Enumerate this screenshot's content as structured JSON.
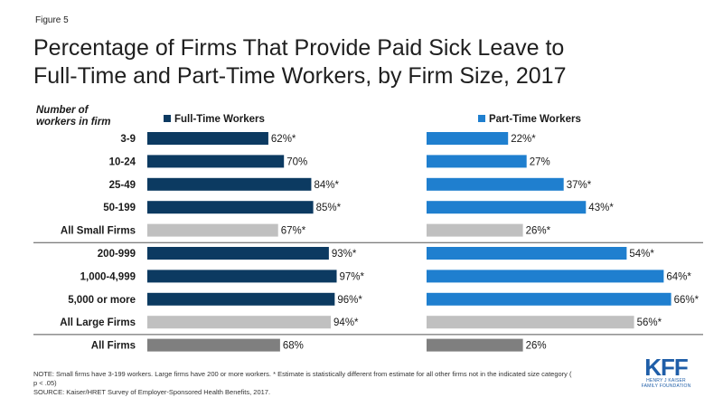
{
  "figure_label": "Figure 5",
  "title_lines": [
    "Percentage of Firms That Provide Paid Sick Leave to",
    "Full-Time and Part-Time Workers, by Firm Size, 2017"
  ],
  "note_lines": [
    "NOTE:  Small firms have 3-199 workers. Large firms have 200 or more workers. * Estimate is statistically different from  estimate for all other firms not in the indicated size category (",
    "p < .05)",
    "SOURCE:  Kaiser/HRET Survey of Employer-Sponsored Health Benefits, 2017."
  ],
  "logo": {
    "mark": "KFF",
    "sub_lines": [
      "HENRY J KAISER",
      "FAMILY FOUNDATION"
    ]
  },
  "colors": {
    "full_time": "#0c3a61",
    "part_time": "#1f7fcf",
    "subtotal": "#c0c0c0",
    "total": "#7f7f7f",
    "divider": "#555555"
  },
  "chart_data": {
    "type": "bar",
    "orientation": "horizontal",
    "category_header": [
      "Number of",
      "workers in firm"
    ],
    "categories": [
      "3-9",
      "10-24",
      "25-49",
      "50-199",
      "All Small Firms",
      "200-999",
      "1,000-4,999",
      "5,000 or more",
      "All Large Firms",
      "All Firms"
    ],
    "category_kinds": [
      "size",
      "size",
      "size",
      "size",
      "subtotal",
      "size",
      "size",
      "size",
      "subtotal",
      "total"
    ],
    "series": [
      {
        "name": "Full-Time Workers",
        "values": [
          62,
          70,
          84,
          85,
          67,
          93,
          97,
          96,
          94,
          68
        ],
        "labels": [
          "62%*",
          "70%",
          "84%*",
          "85%*",
          "67%*",
          "93%*",
          "97%*",
          "96%*",
          "94%*",
          "68%"
        ]
      },
      {
        "name": "Part-Time Workers",
        "values": [
          22,
          27,
          37,
          43,
          26,
          54,
          64,
          66,
          56,
          26
        ],
        "labels": [
          "22%*",
          "27%",
          "37%*",
          "43%*",
          "26%*",
          "54%*",
          "64%*",
          "66%*",
          "56%*",
          "26%"
        ]
      }
    ],
    "xlim": [
      0,
      100
    ],
    "unit": "%",
    "legend": "above each panel"
  }
}
